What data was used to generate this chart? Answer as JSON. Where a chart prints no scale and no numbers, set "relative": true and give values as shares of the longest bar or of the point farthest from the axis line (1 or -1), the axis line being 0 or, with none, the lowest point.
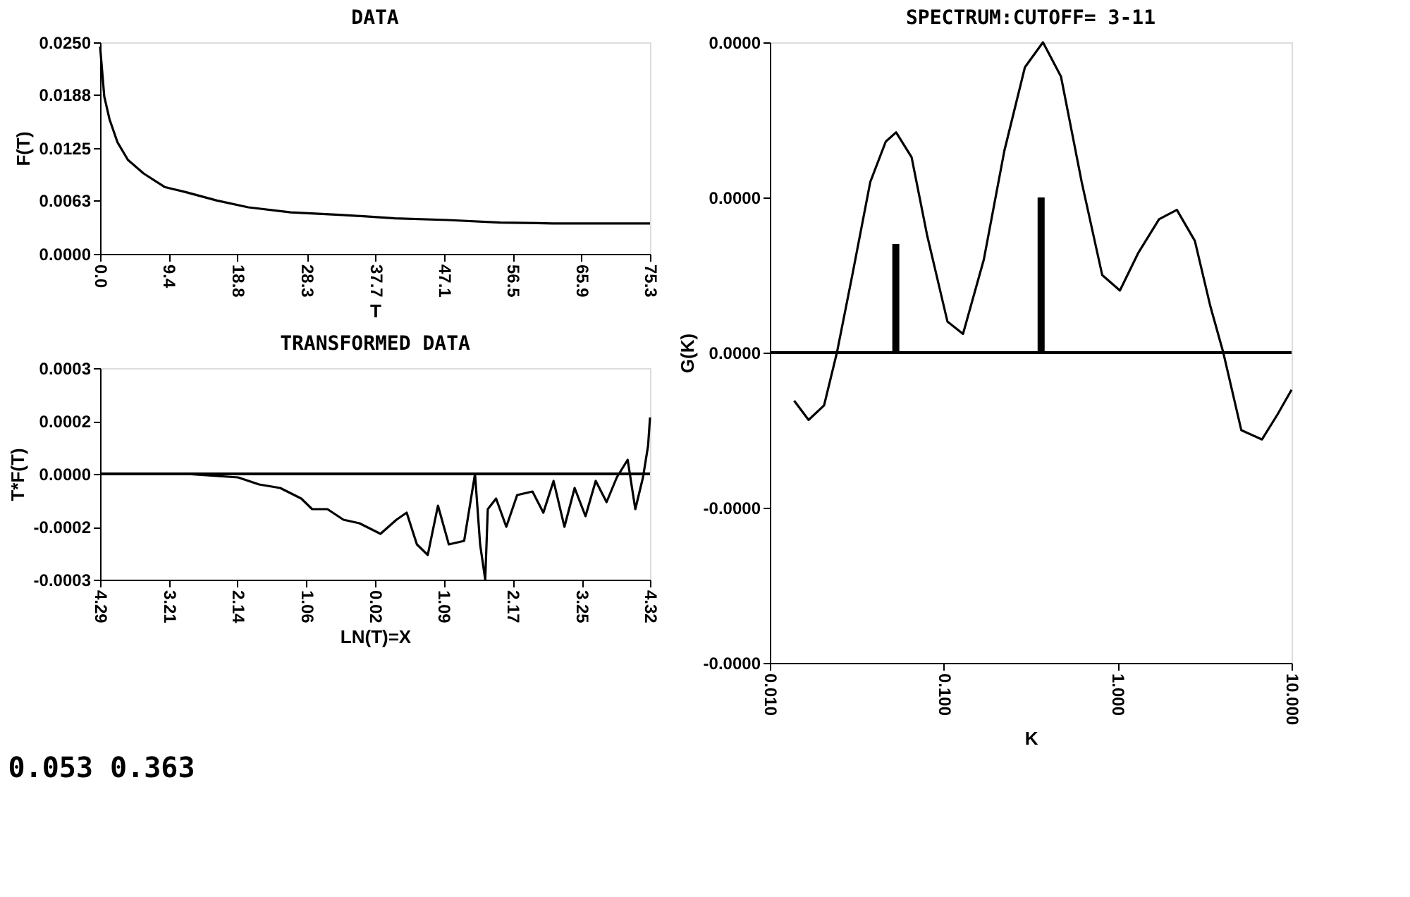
{
  "chart_data": [
    {
      "type": "line",
      "title": "DATA",
      "xlabel": "T",
      "ylabel": "F(T)",
      "xlim": [
        0,
        75.3
      ],
      "xticks": [
        {
          "value": 0,
          "label": "0.0"
        },
        9.4,
        18.8,
        28.3,
        37.7,
        47.1,
        56.5,
        65.9,
        75.3
      ],
      "ylim": [
        0,
        0.025
      ],
      "yticks": [
        {
          "value": 0,
          "label": "0.0000"
        },
        0.0063,
        0.0125,
        0.0188,
        {
          "value": 0.025,
          "label": "0.0250"
        }
      ],
      "grid": false,
      "series": [
        {
          "color": "#000000",
          "x": [
            0,
            0.57,
            1.29,
            2.37,
            3.81,
            5.96,
            8.84,
            11.7,
            16.0,
            20.3,
            26.1,
            33.2,
            40.4,
            47.6,
            54.8,
            62.0,
            75.3
          ],
          "values": [
            0.0245,
            0.0186,
            0.0159,
            0.0132,
            0.0111,
            0.0095,
            0.0079,
            0.0073,
            0.0063,
            0.0055,
            0.0049,
            0.0046,
            0.0042,
            0.004,
            0.0037,
            0.0036,
            0.0036
          ]
        }
      ]
    },
    {
      "type": "line",
      "title": "TRANSFORMED DATA",
      "xlabel": "LN(T)=X",
      "ylabel": "T*F(T)",
      "xlim": [
        -4.29,
        4.32
      ],
      "xticks": [
        {
          "value": -4.29,
          "label": "4.29"
        },
        {
          "value": -3.21,
          "label": "3.21"
        },
        {
          "value": -2.14,
          "label": "2.14"
        },
        {
          "value": -1.06,
          "label": "1.06"
        },
        0.02,
        1.09,
        2.17,
        3.25,
        4.32
      ],
      "ylim": [
        -0.0003,
        0.0003
      ],
      "yticks": [
        -0.0003,
        {
          "value": -0.00015,
          "label": "-0.0002"
        },
        {
          "value": 0,
          "label": "0.0000"
        },
        {
          "value": 0.00015,
          "label": "0.0002"
        },
        0.0003
      ],
      "grid": false,
      "ref_lines": [
        {
          "axis": "y",
          "value": 0,
          "color": "#000000"
        }
      ],
      "series": [
        {
          "color": "#000000",
          "x": [
            -4.29,
            -2.95,
            -2.13,
            -1.8,
            -1.47,
            -1.14,
            -0.97,
            -0.73,
            -0.48,
            -0.23,
            0.1,
            0.35,
            0.51,
            0.67,
            0.84,
            1.0,
            1.17,
            1.41,
            1.58,
            1.66,
            1.74,
            1.78,
            1.91,
            2.07,
            2.24,
            2.48,
            2.65,
            2.81,
            2.98,
            3.14,
            3.31,
            3.47,
            3.64,
            3.8,
            3.97,
            4.09,
            4.21,
            4.29,
            4.32
          ],
          "values": [
            0,
            0,
            -1e-05,
            -3e-05,
            -4e-05,
            -7e-05,
            -0.0001,
            -0.0001,
            -0.00013,
            -0.00014,
            -0.00017,
            -0.00013,
            -0.00011,
            -0.0002,
            -0.00023,
            -9e-05,
            -0.0002,
            -0.00019,
            0,
            -0.0002,
            -0.0003,
            -0.0001,
            -7e-05,
            -0.00015,
            -6e-05,
            -5e-05,
            -0.00011,
            -2e-05,
            -0.00015,
            -4e-05,
            -0.00012,
            -2e-05,
            -8e-05,
            -1e-05,
            4e-05,
            -0.0001,
            -1e-05,
            8e-05,
            0.00016
          ]
        }
      ]
    },
    {
      "type": "line",
      "title": "SPECTRUM:CUTOFF= 3-11",
      "xlabel": "K",
      "ylabel": "G(K)",
      "log": "x",
      "relative": true,
      "xlim": [
        0.01,
        10
      ],
      "xticks": [
        {
          "value": 0.01,
          "label": "0.010"
        },
        {
          "value": 0.1,
          "label": "0.100"
        },
        {
          "value": 1,
          "label": "1.000"
        },
        {
          "value": 10,
          "label": "10.000"
        }
      ],
      "grid": false,
      "ref_lines": [
        {
          "axis": "y",
          "value": 0,
          "color": "#000000"
        }
      ],
      "annotations": [
        "0.053 0.363",
        "0.0000",
        "0.0000",
        "0.0000",
        "-0.0000",
        "-0.0000"
      ],
      "series": [
        {
          "color": "#000000",
          "x": [
            0.0138,
            0.0167,
            0.0205,
            0.0243,
            0.0298,
            0.0378,
            0.0464,
            0.0532,
            0.0653,
            0.0801,
            0.105,
            0.129,
            0.17,
            0.223,
            0.293,
            0.372,
            0.472,
            0.621,
            0.815,
            1.03,
            1.31,
            1.73,
            2.19,
            2.78,
            3.41,
            4.05,
            5.14,
            6.76,
            8.29,
            10
          ],
          "values": [
            -0.155,
            -0.217,
            -0.17,
            0,
            0.25,
            0.55,
            0.68,
            0.71,
            0.63,
            0.38,
            0.1,
            0.06,
            0.3,
            0.65,
            0.92,
            1.0,
            0.89,
            0.55,
            0.25,
            0.2,
            0.32,
            0.43,
            0.46,
            0.36,
            0.15,
            0,
            -0.25,
            -0.28,
            -0.2,
            -0.12
          ]
        },
        {
          "type": "bar",
          "color": "#000000",
          "x": [
            0.053,
            0.363
          ],
          "values": [
            0.35,
            0.5
          ]
        }
      ]
    }
  ]
}
